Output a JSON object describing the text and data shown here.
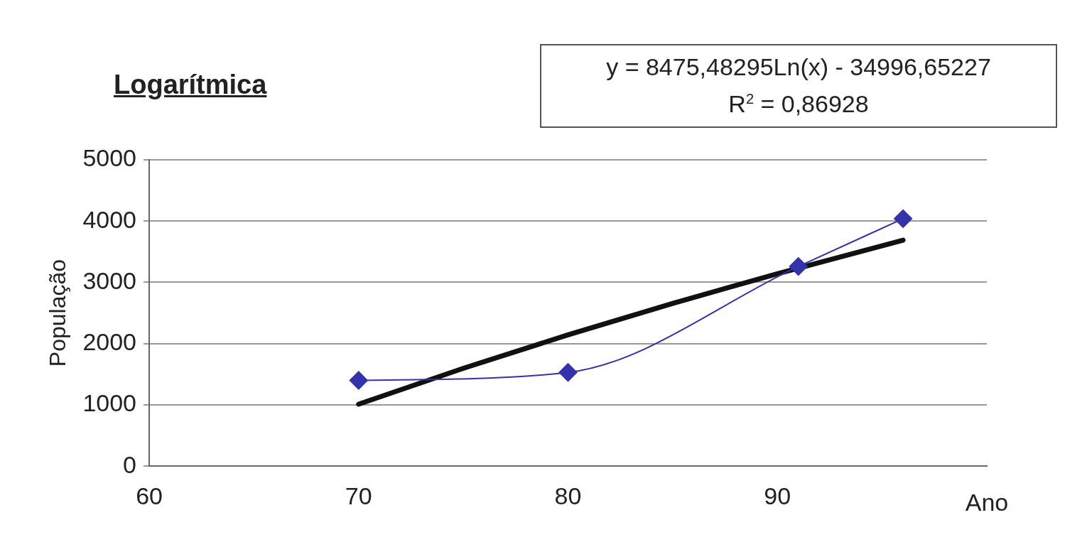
{
  "chart_data": {
    "type": "line",
    "title": "Logarítmica",
    "xlabel": "Ano",
    "ylabel": "População",
    "annotations": [
      "y = 8475,48295Ln(x) - 34996,65227",
      "R$^{2}$ = 0,86928"
    ],
    "xlim": [
      60,
      100
    ],
    "xticks": [
      60,
      70,
      80,
      90
    ],
    "ylim": [
      0,
      5000
    ],
    "yticks": [
      0,
      1000,
      2000,
      3000,
      4000,
      5000
    ],
    "grid": "y",
    "legend": false,
    "series": [
      {
        "color": "#3333aa",
        "marker": "diamond",
        "x": [
          70,
          80,
          91,
          96
        ],
        "values": [
          1400,
          1530,
          3260,
          4040
        ]
      },
      {
        "type": "line",
        "color": "#111111",
        "marker": "none",
        "x": [
          70,
          75,
          80,
          85,
          90,
          96
        ],
        "values": [
          1011,
          1597,
          2143,
          2657,
          3141,
          3688
        ]
      }
    ]
  }
}
